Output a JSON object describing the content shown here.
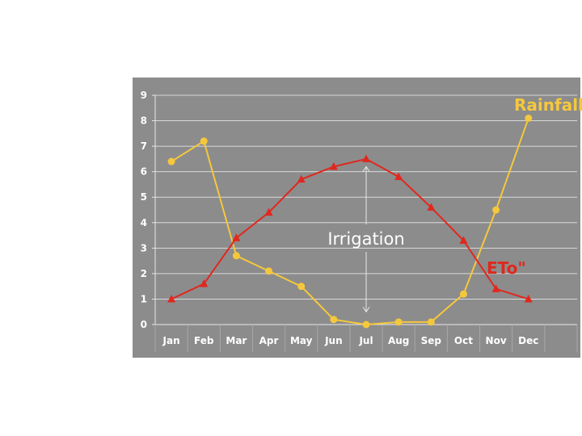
{
  "chart_data": {
    "type": "line",
    "categories": [
      "Jan",
      "Feb",
      "Mar",
      "Apr",
      "May",
      "Jun",
      "Jul",
      "Aug",
      "Sep",
      "Oct",
      "Nov",
      "Dec"
    ],
    "ylim": [
      0,
      9
    ],
    "yticks": [
      0,
      1,
      2,
      3,
      4,
      5,
      6,
      7,
      8,
      9
    ],
    "grid": true,
    "series": [
      {
        "name": "Rainfall\"",
        "color": "#f5c83c",
        "marker": "circle",
        "values": [
          6.4,
          7.2,
          2.7,
          2.1,
          1.5,
          0.2,
          0.0,
          0.1,
          0.1,
          1.2,
          4.5,
          8.1
        ]
      },
      {
        "name": "ETo\"",
        "color": "#e0281e",
        "marker": "triangle",
        "values": [
          1.0,
          1.6,
          3.4,
          4.4,
          5.7,
          6.2,
          6.5,
          5.8,
          4.6,
          3.3,
          1.4,
          1.0
        ]
      }
    ],
    "annotation": {
      "text": "Irrigation",
      "month": "Jul",
      "from": 0.5,
      "to": 6.2
    }
  }
}
